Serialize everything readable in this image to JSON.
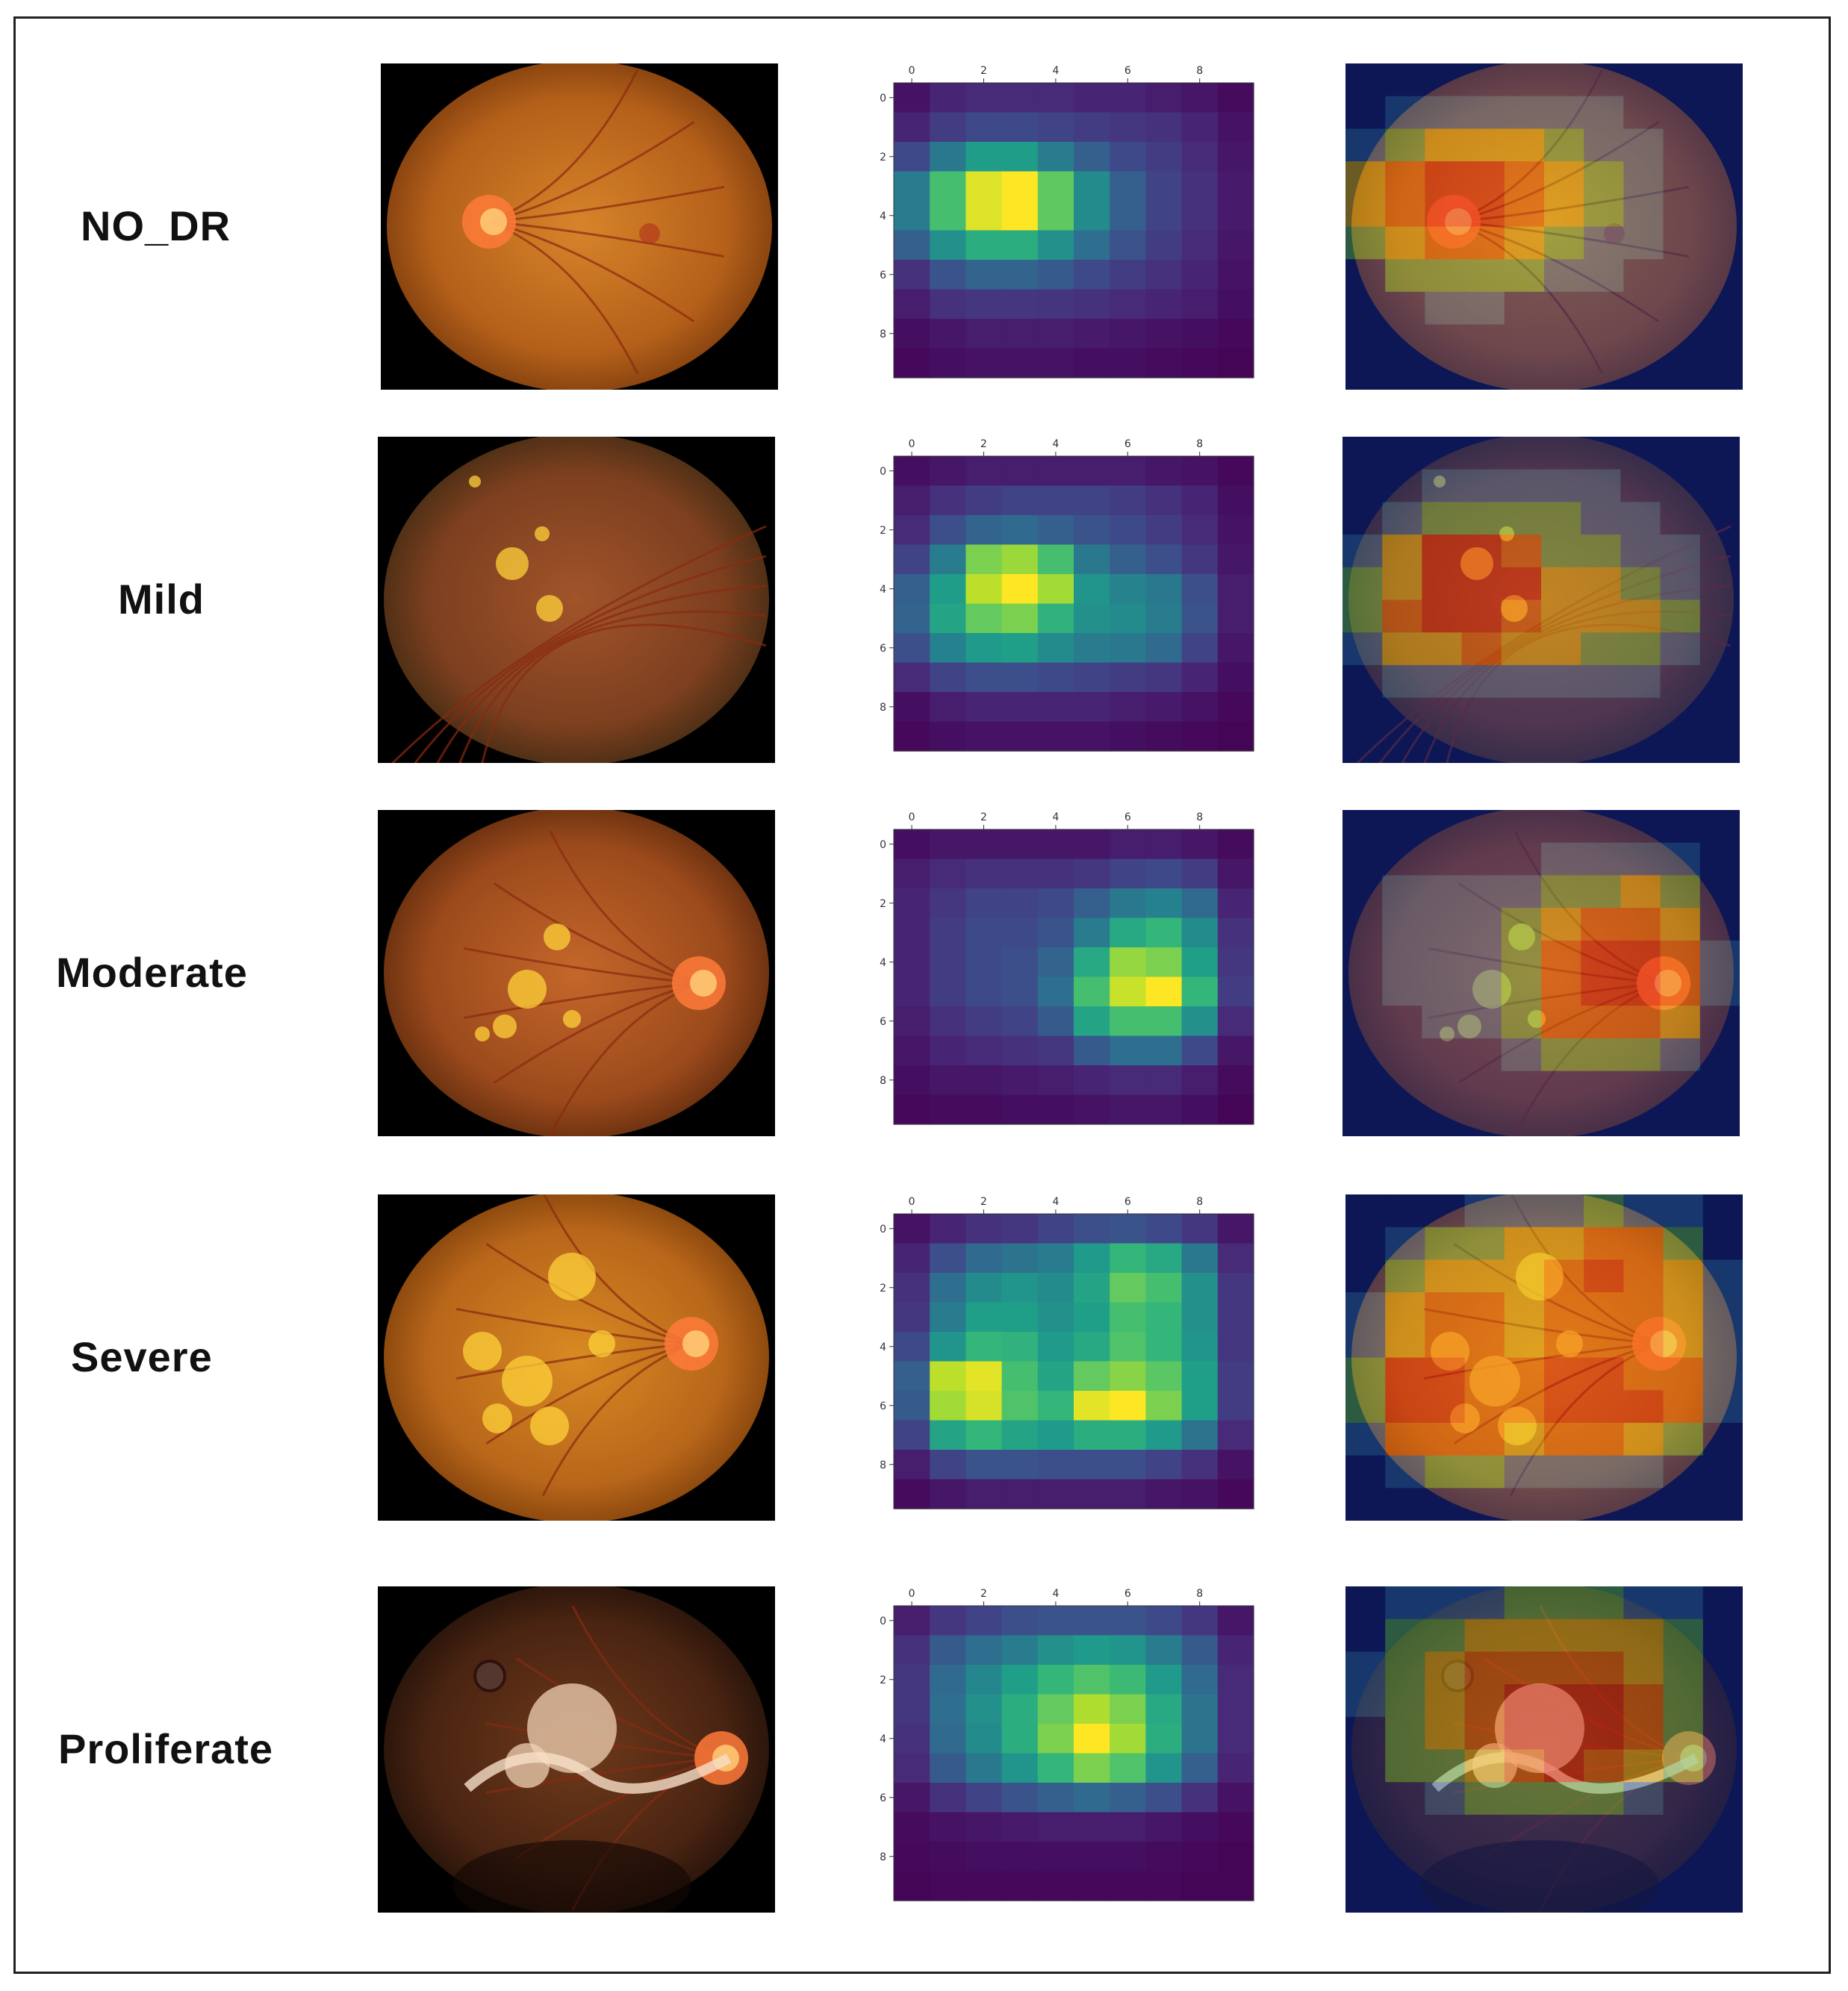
{
  "rows": [
    {
      "label": "NO_DR",
      "heatmap": {
        "x_ticks": [
          "0",
          "2",
          "4",
          "6",
          "8"
        ],
        "y_ticks": [
          "0",
          "2",
          "4",
          "6",
          "8"
        ],
        "values": [
          [
            0.05,
            0.1,
            0.12,
            0.12,
            0.12,
            0.1,
            0.1,
            0.08,
            0.06,
            0.03
          ],
          [
            0.1,
            0.18,
            0.22,
            0.22,
            0.2,
            0.18,
            0.16,
            0.14,
            0.1,
            0.05
          ],
          [
            0.22,
            0.4,
            0.55,
            0.55,
            0.42,
            0.3,
            0.22,
            0.18,
            0.12,
            0.06
          ],
          [
            0.42,
            0.7,
            0.95,
            1.0,
            0.75,
            0.48,
            0.3,
            0.2,
            0.14,
            0.07
          ],
          [
            0.42,
            0.7,
            0.95,
            1.0,
            0.75,
            0.48,
            0.3,
            0.2,
            0.14,
            0.07
          ],
          [
            0.3,
            0.5,
            0.62,
            0.62,
            0.5,
            0.36,
            0.25,
            0.18,
            0.12,
            0.06
          ],
          [
            0.14,
            0.26,
            0.32,
            0.32,
            0.28,
            0.22,
            0.18,
            0.14,
            0.1,
            0.05
          ],
          [
            0.08,
            0.14,
            0.16,
            0.16,
            0.15,
            0.14,
            0.12,
            0.1,
            0.08,
            0.04
          ],
          [
            0.04,
            0.06,
            0.08,
            0.08,
            0.08,
            0.07,
            0.06,
            0.05,
            0.04,
            0.02
          ],
          [
            0.02,
            0.04,
            0.05,
            0.05,
            0.05,
            0.04,
            0.04,
            0.03,
            0.02,
            0.01
          ]
        ]
      }
    },
    {
      "label": "Mild",
      "heatmap": {
        "x_ticks": [
          "0",
          "2",
          "4",
          "6",
          "8"
        ],
        "y_ticks": [
          "0",
          "2",
          "4",
          "6",
          "8"
        ],
        "values": [
          [
            0.04,
            0.06,
            0.08,
            0.08,
            0.08,
            0.08,
            0.08,
            0.06,
            0.05,
            0.02
          ],
          [
            0.08,
            0.14,
            0.18,
            0.2,
            0.2,
            0.2,
            0.18,
            0.14,
            0.1,
            0.04
          ],
          [
            0.12,
            0.24,
            0.32,
            0.34,
            0.3,
            0.26,
            0.22,
            0.18,
            0.12,
            0.05
          ],
          [
            0.2,
            0.42,
            0.8,
            0.85,
            0.7,
            0.4,
            0.3,
            0.24,
            0.16,
            0.06
          ],
          [
            0.3,
            0.55,
            0.9,
            1.0,
            0.86,
            0.52,
            0.45,
            0.4,
            0.24,
            0.08
          ],
          [
            0.32,
            0.58,
            0.76,
            0.8,
            0.64,
            0.5,
            0.48,
            0.42,
            0.26,
            0.08
          ],
          [
            0.24,
            0.44,
            0.54,
            0.56,
            0.48,
            0.42,
            0.4,
            0.34,
            0.2,
            0.06
          ],
          [
            0.12,
            0.2,
            0.24,
            0.24,
            0.22,
            0.2,
            0.18,
            0.16,
            0.1,
            0.04
          ],
          [
            0.04,
            0.08,
            0.1,
            0.1,
            0.1,
            0.1,
            0.08,
            0.07,
            0.05,
            0.02
          ],
          [
            0.02,
            0.04,
            0.05,
            0.05,
            0.05,
            0.05,
            0.04,
            0.03,
            0.02,
            0.01
          ]
        ]
      }
    },
    {
      "label": "Moderate",
      "heatmap": {
        "x_ticks": [
          "0",
          "2",
          "4",
          "6",
          "8"
        ],
        "y_ticks": [
          "0",
          "2",
          "4",
          "6",
          "8"
        ],
        "values": [
          [
            0.04,
            0.06,
            0.06,
            0.06,
            0.06,
            0.06,
            0.08,
            0.08,
            0.06,
            0.03
          ],
          [
            0.08,
            0.12,
            0.14,
            0.14,
            0.14,
            0.16,
            0.2,
            0.22,
            0.18,
            0.06
          ],
          [
            0.1,
            0.16,
            0.2,
            0.2,
            0.22,
            0.3,
            0.4,
            0.44,
            0.34,
            0.1
          ],
          [
            0.1,
            0.18,
            0.22,
            0.22,
            0.26,
            0.42,
            0.6,
            0.66,
            0.48,
            0.14
          ],
          [
            0.1,
            0.18,
            0.22,
            0.24,
            0.32,
            0.6,
            0.84,
            0.8,
            0.56,
            0.16
          ],
          [
            0.1,
            0.18,
            0.22,
            0.24,
            0.36,
            0.7,
            0.92,
            1.0,
            0.66,
            0.18
          ],
          [
            0.08,
            0.14,
            0.18,
            0.2,
            0.28,
            0.58,
            0.7,
            0.7,
            0.5,
            0.12
          ],
          [
            0.06,
            0.1,
            0.12,
            0.14,
            0.16,
            0.28,
            0.36,
            0.36,
            0.22,
            0.06
          ],
          [
            0.04,
            0.06,
            0.06,
            0.07,
            0.08,
            0.1,
            0.12,
            0.12,
            0.08,
            0.03
          ],
          [
            0.02,
            0.03,
            0.03,
            0.04,
            0.04,
            0.05,
            0.06,
            0.06,
            0.04,
            0.01
          ]
        ]
      }
    },
    {
      "label": "Severe",
      "heatmap": {
        "x_ticks": [
          "0",
          "2",
          "4",
          "6",
          "8"
        ],
        "y_ticks": [
          "0",
          "2",
          "4",
          "6",
          "8"
        ],
        "values": [
          [
            0.05,
            0.1,
            0.14,
            0.16,
            0.2,
            0.24,
            0.26,
            0.22,
            0.16,
            0.06
          ],
          [
            0.1,
            0.24,
            0.34,
            0.38,
            0.42,
            0.54,
            0.66,
            0.6,
            0.4,
            0.12
          ],
          [
            0.14,
            0.36,
            0.48,
            0.52,
            0.48,
            0.58,
            0.76,
            0.7,
            0.5,
            0.16
          ],
          [
            0.16,
            0.42,
            0.56,
            0.56,
            0.5,
            0.56,
            0.7,
            0.66,
            0.5,
            0.16
          ],
          [
            0.22,
            0.52,
            0.66,
            0.64,
            0.54,
            0.6,
            0.72,
            0.66,
            0.52,
            0.16
          ],
          [
            0.3,
            0.9,
            0.96,
            0.7,
            0.58,
            0.76,
            0.82,
            0.74,
            0.56,
            0.18
          ],
          [
            0.28,
            0.86,
            0.94,
            0.72,
            0.66,
            0.96,
            1.0,
            0.8,
            0.56,
            0.18
          ],
          [
            0.2,
            0.58,
            0.66,
            0.58,
            0.54,
            0.62,
            0.62,
            0.54,
            0.38,
            0.12
          ],
          [
            0.08,
            0.2,
            0.26,
            0.26,
            0.24,
            0.24,
            0.24,
            0.2,
            0.14,
            0.05
          ],
          [
            0.03,
            0.06,
            0.08,
            0.08,
            0.08,
            0.08,
            0.08,
            0.06,
            0.05,
            0.02
          ]
        ]
      }
    },
    {
      "label": "Proliferate",
      "heatmap": {
        "x_ticks": [
          "0",
          "2",
          "4",
          "6",
          "8"
        ],
        "y_ticks": [
          "0",
          "2",
          "4",
          "6",
          "8"
        ],
        "values": [
          [
            0.08,
            0.16,
            0.2,
            0.24,
            0.26,
            0.26,
            0.26,
            0.22,
            0.16,
            0.06
          ],
          [
            0.14,
            0.28,
            0.36,
            0.42,
            0.5,
            0.54,
            0.52,
            0.42,
            0.28,
            0.1
          ],
          [
            0.16,
            0.34,
            0.46,
            0.56,
            0.66,
            0.72,
            0.68,
            0.54,
            0.34,
            0.12
          ],
          [
            0.16,
            0.36,
            0.5,
            0.62,
            0.76,
            0.88,
            0.8,
            0.6,
            0.38,
            0.12
          ],
          [
            0.14,
            0.34,
            0.48,
            0.62,
            0.8,
            1.0,
            0.86,
            0.62,
            0.38,
            0.12
          ],
          [
            0.12,
            0.28,
            0.4,
            0.52,
            0.66,
            0.8,
            0.72,
            0.52,
            0.3,
            0.1
          ],
          [
            0.06,
            0.14,
            0.2,
            0.26,
            0.3,
            0.34,
            0.3,
            0.24,
            0.14,
            0.05
          ],
          [
            0.03,
            0.05,
            0.06,
            0.07,
            0.08,
            0.08,
            0.08,
            0.06,
            0.04,
            0.02
          ],
          [
            0.02,
            0.03,
            0.04,
            0.04,
            0.04,
            0.04,
            0.04,
            0.03,
            0.02,
            0.01
          ],
          [
            0.01,
            0.02,
            0.02,
            0.02,
            0.02,
            0.02,
            0.02,
            0.02,
            0.01,
            0.01
          ]
        ]
      }
    }
  ],
  "colors": {
    "fundus_orange": "#c8711d",
    "fundus_dark": "#7a3d0d",
    "optic_disc": "#ff9a4a",
    "viridis_low": "#440154",
    "viridis_mid": "#21918c",
    "viridis_high": "#fde725"
  }
}
